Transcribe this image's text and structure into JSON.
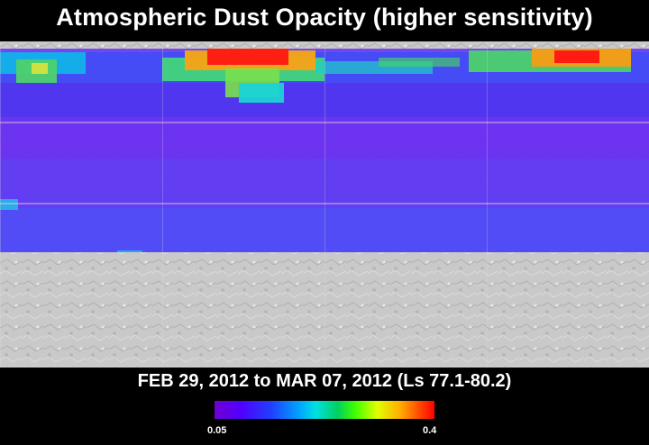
{
  "title": "Atmospheric Dust Opacity (higher sensitivity)",
  "date_range": "FEB 29, 2012 to MAR 07, 2012 (Ls 77.1-80.2)",
  "colorbar": {
    "min_label": "0.05",
    "max_label": "0.4"
  },
  "colors": {
    "background": "#000000",
    "low_opacity": "#5a2ae8",
    "high_opacity": "#ff0000",
    "no_data_surface": "#cfcfcf"
  },
  "overlay": {
    "description_visible": false
  }
}
